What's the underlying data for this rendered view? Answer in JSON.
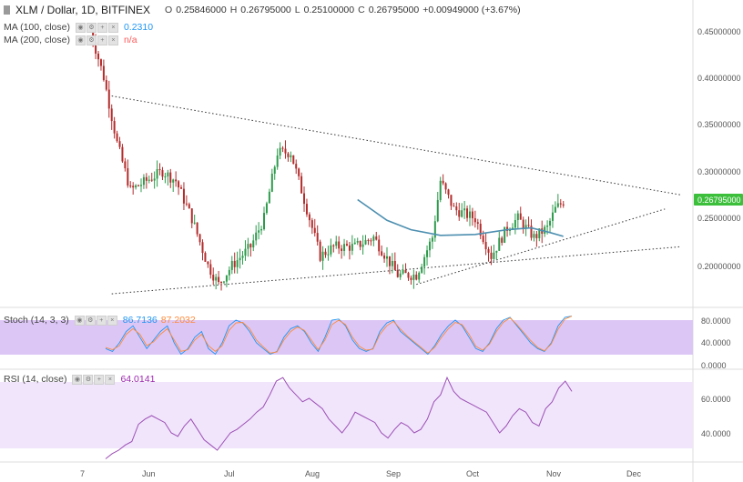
{
  "header": {
    "symbol": "XLM / Dollar, 1D, BITFINEX",
    "open_label": "O",
    "open": "0.25846000",
    "high_label": "H",
    "high": "0.26795000",
    "low_label": "L",
    "low": "0.25100000",
    "close_label": "C",
    "close": "0.26795000",
    "change": "+0.00949000 (+3.67%)"
  },
  "indicators": {
    "ma100": {
      "label": "MA (100, close)",
      "value": "0.2310",
      "color": "#2196f3"
    },
    "ma200": {
      "label": "MA (200, close)",
      "value": "n/a",
      "color": "#ff5a5a"
    },
    "stoch": {
      "label": "Stoch (14, 3, 3)",
      "k": "86.7136",
      "d": "87.2032",
      "k_color": "#2196f3",
      "d_color": "#ff8a3a"
    },
    "rsi": {
      "label": "RSI (14, close)",
      "value": "64.0141",
      "color": "#9c27b0"
    }
  },
  "price_axis": {
    "ticks": [
      "0.45000000",
      "0.40000000",
      "0.35000000",
      "0.30000000",
      "0.25000000",
      "0.20000000"
    ],
    "current_label": "0.26795000",
    "current_color": "#3cc03c"
  },
  "stoch_axis": {
    "ticks": [
      "80.0000",
      "40.0000",
      "0.0000"
    ]
  },
  "rsi_axis": {
    "ticks": [
      "60.0000",
      "40.0000"
    ]
  },
  "time_axis": {
    "ticks": [
      "7",
      "Jun",
      "Jul",
      "Aug",
      "Sep",
      "Oct",
      "Nov",
      "Dec"
    ]
  },
  "colors": {
    "up": "#2e9a4c",
    "down": "#b22c2c",
    "ma100": "#4d8fb0",
    "stoch_band": "#dcc6f5",
    "rsi_band": "#f1e5fb",
    "rsi_line": "#9c4fb5"
  },
  "chart_data": {
    "type": "candlestick",
    "price_range": [
      0.15,
      0.48
    ],
    "close_series": [
      {
        "x": "2018-05-13",
        "y": 0.45
      },
      {
        "x": "2018-05-18",
        "y": 0.4
      },
      {
        "x": "2018-05-23",
        "y": 0.33
      },
      {
        "x": "2018-05-28",
        "y": 0.28
      },
      {
        "x": "2018-06-03",
        "y": 0.29
      },
      {
        "x": "2018-06-09",
        "y": 0.3
      },
      {
        "x": "2018-06-14",
        "y": 0.29
      },
      {
        "x": "2018-06-20",
        "y": 0.25
      },
      {
        "x": "2018-06-26",
        "y": 0.2
      },
      {
        "x": "2018-06-30",
        "y": 0.18
      },
      {
        "x": "2018-07-05",
        "y": 0.2
      },
      {
        "x": "2018-07-12",
        "y": 0.22
      },
      {
        "x": "2018-07-17",
        "y": 0.25
      },
      {
        "x": "2018-07-22",
        "y": 0.32
      },
      {
        "x": "2018-07-27",
        "y": 0.32
      },
      {
        "x": "2018-08-01",
        "y": 0.27
      },
      {
        "x": "2018-08-07",
        "y": 0.21
      },
      {
        "x": "2018-08-12",
        "y": 0.22
      },
      {
        "x": "2018-08-20",
        "y": 0.22
      },
      {
        "x": "2018-08-27",
        "y": 0.23
      },
      {
        "x": "2018-09-05",
        "y": 0.19
      },
      {
        "x": "2018-09-12",
        "y": 0.19
      },
      {
        "x": "2018-09-18",
        "y": 0.23
      },
      {
        "x": "2018-09-21",
        "y": 0.29
      },
      {
        "x": "2018-09-26",
        "y": 0.26
      },
      {
        "x": "2018-10-04",
        "y": 0.25
      },
      {
        "x": "2018-10-10",
        "y": 0.21
      },
      {
        "x": "2018-10-16",
        "y": 0.24
      },
      {
        "x": "2018-10-20",
        "y": 0.25
      },
      {
        "x": "2018-10-26",
        "y": 0.23
      },
      {
        "x": "2018-10-31",
        "y": 0.24
      },
      {
        "x": "2018-11-03",
        "y": 0.26
      },
      {
        "x": "2018-11-06",
        "y": 0.268
      }
    ],
    "ma100": {
      "name": "MA (100, close)",
      "points": [
        {
          "x": "2018-08-21",
          "y": 0.27
        },
        {
          "x": "2018-09-01",
          "y": 0.248
        },
        {
          "x": "2018-09-10",
          "y": 0.238
        },
        {
          "x": "2018-09-21",
          "y": 0.232
        },
        {
          "x": "2018-10-04",
          "y": 0.233
        },
        {
          "x": "2018-10-16",
          "y": 0.238
        },
        {
          "x": "2018-10-25",
          "y": 0.24
        },
        {
          "x": "2018-11-01",
          "y": 0.235
        },
        {
          "x": "2018-11-06",
          "y": 0.231
        }
      ]
    },
    "trendlines": [
      {
        "from": {
          "x": "2018-05-21",
          "y": 0.38
        },
        "to": {
          "x": "2018-12-20",
          "y": 0.275
        }
      },
      {
        "from": {
          "x": "2018-05-21",
          "y": 0.17
        },
        "to": {
          "x": "2018-12-20",
          "y": 0.22
        }
      },
      {
        "from": {
          "x": "2018-09-12",
          "y": 0.18
        },
        "to": {
          "x": "2018-12-14",
          "y": 0.26
        }
      }
    ],
    "stoch": {
      "range": [
        0,
        100
      ],
      "band": [
        20,
        80
      ],
      "k": [
        30,
        25,
        40,
        60,
        70,
        50,
        30,
        45,
        60,
        70,
        40,
        20,
        30,
        50,
        60,
        30,
        20,
        40,
        70,
        80,
        75,
        60,
        40,
        30,
        20,
        25,
        50,
        65,
        70,
        60,
        40,
        25,
        50,
        80,
        82,
        70,
        45,
        30,
        25,
        30,
        60,
        75,
        80,
        60,
        50,
        40,
        30,
        20,
        35,
        55,
        70,
        80,
        70,
        50,
        30,
        25,
        40,
        65,
        80,
        85,
        70,
        55,
        40,
        30,
        25,
        40,
        70,
        85,
        87
      ],
      "d": [
        32,
        28,
        35,
        55,
        65,
        55,
        35,
        42,
        55,
        65,
        45,
        25,
        28,
        45,
        55,
        35,
        25,
        35,
        62,
        75,
        76,
        65,
        45,
        33,
        22,
        24,
        45,
        60,
        68,
        62,
        45,
        28,
        45,
        72,
        80,
        72,
        50,
        34,
        27,
        29,
        55,
        70,
        78,
        64,
        52,
        42,
        32,
        22,
        32,
        50,
        65,
        76,
        72,
        55,
        34,
        27,
        38,
        60,
        76,
        84,
        72,
        58,
        44,
        32,
        26,
        38,
        64,
        82,
        87
      ]
    },
    "rsi": {
      "range": [
        20,
        80
      ],
      "band": [
        30,
        70
      ],
      "values": [
        25,
        28,
        30,
        33,
        35,
        45,
        48,
        50,
        48,
        46,
        40,
        38,
        44,
        48,
        42,
        36,
        33,
        30,
        35,
        40,
        42,
        45,
        48,
        52,
        55,
        62,
        70,
        72,
        66,
        62,
        58,
        60,
        57,
        54,
        48,
        44,
        40,
        45,
        52,
        50,
        48,
        46,
        40,
        37,
        42,
        46,
        44,
        40,
        42,
        48,
        58,
        62,
        72,
        64,
        60,
        58,
        56,
        54,
        52,
        46,
        40,
        44,
        50,
        54,
        52,
        46,
        44,
        54,
        58,
        66,
        70,
        64
      ]
    }
  }
}
